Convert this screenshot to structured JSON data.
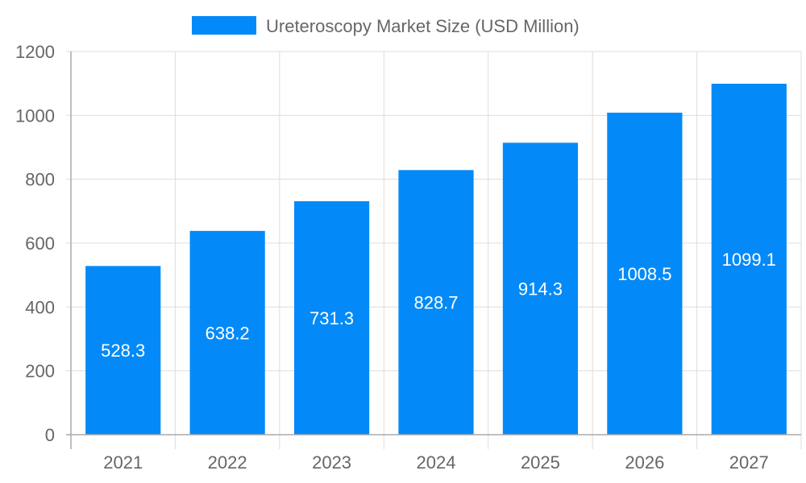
{
  "chart_data": {
    "type": "bar",
    "categories": [
      "2021",
      "2022",
      "2023",
      "2024",
      "2025",
      "2026",
      "2027"
    ],
    "series": [
      {
        "name": "Ureteroscopy Market Size (USD Million)",
        "values": [
          528.3,
          638.2,
          731.3,
          828.7,
          914.3,
          1008.5,
          1099.1
        ],
        "color": "#038af8"
      }
    ],
    "data_labels": [
      "528.3",
      "638.2",
      "731.3",
      "828.7",
      "914.3",
      "1008.5",
      "1099.1"
    ],
    "y_ticks": [
      "0",
      "200",
      "400",
      "600",
      "800",
      "1000",
      "1200"
    ],
    "ylim": [
      0,
      1200
    ],
    "grid": true,
    "legend_position": "top-center"
  }
}
